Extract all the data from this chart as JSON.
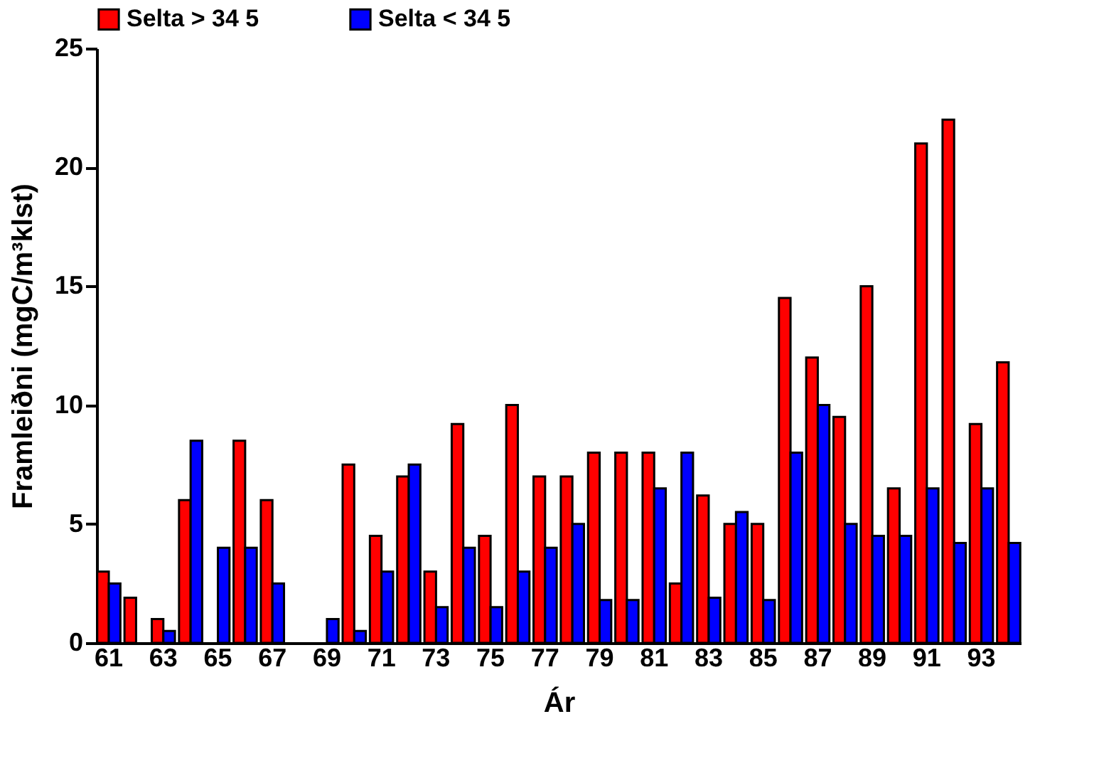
{
  "chart_data": {
    "type": "bar",
    "xlabel": "Ár",
    "ylabel": "Framleiðni (mgC/m³klst)",
    "categories": [
      "61",
      null,
      "63",
      null,
      "65",
      null,
      "67",
      null,
      "69",
      null,
      "71",
      null,
      "73",
      null,
      "75",
      null,
      "77",
      null,
      "79",
      null,
      "81",
      null,
      "83",
      null,
      "85",
      null,
      "87",
      null,
      "89",
      null,
      "91",
      null,
      "93",
      null
    ],
    "series": [
      {
        "name": "Selta > 34 5",
        "color": "#ff0000",
        "values": [
          3.0,
          1.9,
          1.0,
          6.0,
          null,
          8.5,
          6.0,
          null,
          null,
          7.5,
          4.5,
          7.0,
          3.0,
          9.2,
          4.5,
          10.0,
          7.0,
          7.0,
          8.0,
          8.0,
          8.0,
          2.5,
          6.2,
          5.0,
          5.0,
          14.5,
          12.0,
          9.5,
          15.0,
          6.5,
          21.0,
          22.0,
          9.2,
          11.8
        ]
      },
      {
        "name": "Selta < 34 5",
        "color": "#0000ff",
        "values": [
          2.5,
          null,
          0.5,
          8.5,
          4.0,
          4.0,
          2.5,
          null,
          1.0,
          0.5,
          3.0,
          7.5,
          1.5,
          4.0,
          1.5,
          3.0,
          4.0,
          5.0,
          1.8,
          1.8,
          6.5,
          8.0,
          1.9,
          5.5,
          1.8,
          8.0,
          10.0,
          5.0,
          4.5,
          4.5,
          6.5,
          4.2,
          6.5,
          4.2
        ]
      }
    ],
    "ylim": [
      0,
      25
    ],
    "yticks": [
      0,
      5,
      10,
      15,
      20,
      25
    ],
    "grid": false,
    "legend": "top"
  }
}
